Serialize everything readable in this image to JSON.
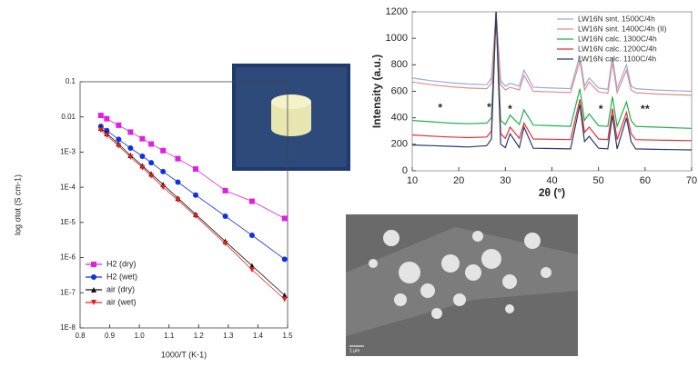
{
  "chart_data": [
    {
      "type": "line",
      "x_label": "1000/T (K-1)",
      "y_label": "log σtot (S cm-1)",
      "log_y": true,
      "legend": "lower left",
      "x": [
        0.87,
        0.89,
        0.93,
        0.97,
        1.01,
        1.04,
        1.08,
        1.13,
        1.19,
        1.29,
        1.38,
        1.49
      ],
      "xlim": [
        0.8,
        1.5
      ],
      "xticks": [
        0.8,
        0.9,
        {
          "value": 1,
          "label": "1.0"
        },
        1.1,
        1.2,
        1.3,
        1.4,
        1.5
      ],
      "ylim": [
        1e-08,
        0.1
      ],
      "yticks": [
        {
          "value": 1e-08,
          "label": "1E-8"
        },
        {
          "value": 1e-07,
          "label": "1E-7"
        },
        {
          "value": 1e-06,
          "label": "1E-6"
        },
        {
          "value": 1e-05,
          "label": "1E-5"
        },
        {
          "value": 0.0001,
          "label": "1E-4"
        },
        {
          "value": 0.001,
          "label": "1E-3"
        },
        0.01,
        0.1
      ],
      "series": [
        {
          "name": "H2 (dry)",
          "color": "#e020e0",
          "marker": "square",
          "values": [
            0.011,
            0.0089,
            0.0058,
            0.0037,
            0.0024,
            0.0017,
            0.0011,
            0.00065,
            0.00033,
            8e-05,
            4e-05,
            1.3e-05
          ]
        },
        {
          "name": "H2 (wet)",
          "color": "#1030e0",
          "marker": "circle",
          "values": [
            0.0054,
            0.0041,
            0.0023,
            0.0013,
            0.00076,
            0.0005,
            0.00028,
            0.00014,
            6e-05,
            1.5e-05,
            4.3e-06,
            9e-07
          ]
        },
        {
          "name": "air (dry)",
          "color": "#111111",
          "marker": "triangle",
          "values": [
            0.0048,
            0.0034,
            0.0017,
            0.00081,
            0.00041,
            0.00024,
            0.00012,
            4.9e-05,
            1.7e-05,
            2.9e-06,
            5.9e-07,
            8.5e-08
          ]
        },
        {
          "name": "air (wet)",
          "color": "#e02020",
          "marker": "triangle-down",
          "values": [
            0.0042,
            0.003,
            0.0015,
            0.00072,
            0.00036,
            0.00021,
            0.0001,
            4.3e-05,
            1.5e-05,
            2.5e-06,
            4.5e-07,
            6.5e-08
          ]
        }
      ]
    },
    {
      "type": "line",
      "x_label": "2θ (°)",
      "y_label": "Intensity (a.u.)",
      "log_y": false,
      "legend": "upper right",
      "x": [
        10,
        14,
        18,
        22,
        26,
        27,
        28,
        29,
        30,
        31,
        33,
        34,
        36,
        40,
        44,
        46,
        47,
        48,
        50,
        52,
        53,
        54,
        56,
        57,
        58,
        62,
        66,
        70
      ],
      "xlim": [
        10,
        70
      ],
      "xticks": [
        10,
        20,
        30,
        40,
        50,
        60,
        70
      ],
      "ylim": [
        0,
        1200
      ],
      "yticks": [
        0,
        200,
        400,
        600,
        800,
        1000,
        1200
      ],
      "series": [
        {
          "name": "LW16N sint. 1500C/4h",
          "color": "#a0a8d8",
          "values": [
            700,
            680,
            665,
            655,
            650,
            700,
            1200,
            680,
            640,
            660,
            640,
            760,
            630,
            625,
            620,
            870,
            640,
            700,
            625,
            615,
            860,
            620,
            800,
            640,
            620,
            610,
            605,
            600
          ]
        },
        {
          "name": "LW16N sint. 1400C/4h (II)",
          "color": "#d89090",
          "values": [
            670,
            650,
            635,
            625,
            620,
            660,
            1200,
            650,
            610,
            630,
            610,
            720,
            600,
            595,
            590,
            830,
            610,
            670,
            595,
            585,
            820,
            590,
            760,
            610,
            590,
            580,
            575,
            570
          ]
        },
        {
          "name": "LW16N calc. 1300C/4h",
          "color": "#20b050",
          "values": [
            380,
            370,
            360,
            355,
            360,
            400,
            1200,
            380,
            350,
            420,
            350,
            460,
            345,
            340,
            335,
            620,
            380,
            430,
            340,
            335,
            560,
            335,
            520,
            380,
            335,
            330,
            325,
            320
          ]
        },
        {
          "name": "LW16N calc. 1200C/4h",
          "color": "#e03030",
          "values": [
            270,
            262,
            255,
            250,
            255,
            300,
            1200,
            280,
            245,
            330,
            245,
            360,
            240,
            238,
            235,
            540,
            290,
            330,
            240,
            235,
            470,
            235,
            440,
            280,
            235,
            232,
            230,
            228
          ]
        },
        {
          "name": "LW16N calc. 1100C/4h",
          "color": "#2a3a6a",
          "values": [
            195,
            190,
            185,
            180,
            190,
            240,
            1200,
            200,
            175,
            280,
            175,
            330,
            170,
            168,
            165,
            500,
            220,
            260,
            170,
            165,
            420,
            165,
            400,
            220,
            165,
            162,
            160,
            158
          ]
        }
      ],
      "annotations": [
        {
          "text": "*",
          "x": 16,
          "y": 470
        },
        {
          "text": "*",
          "x": 26.5,
          "y": 475
        },
        {
          "text": "*",
          "x": 31,
          "y": 460
        },
        {
          "text": "*",
          "x": 50.5,
          "y": 460
        },
        {
          "text": "*",
          "x": 59.5,
          "y": 460
        },
        {
          "text": "*",
          "x": 60.5,
          "y": 460
        }
      ]
    }
  ],
  "images": {
    "sem_scale_label": "1 μm"
  }
}
